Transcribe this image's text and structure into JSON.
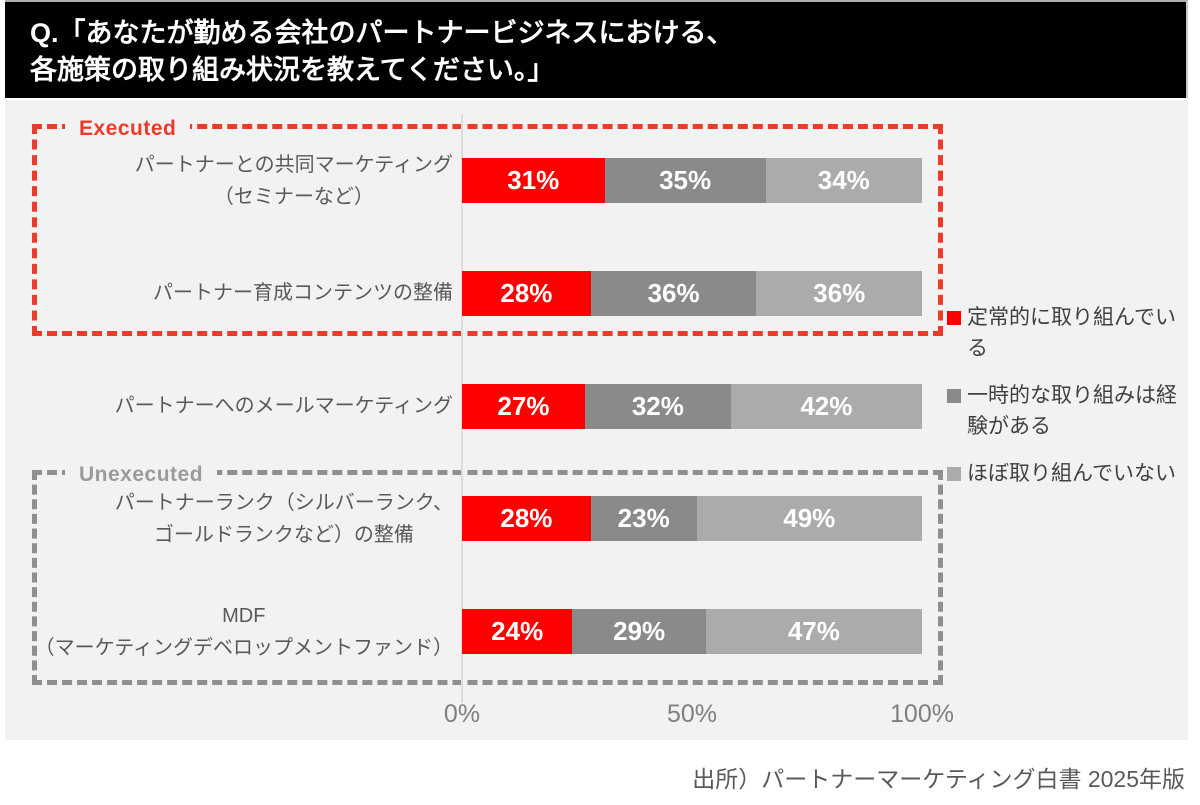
{
  "header": {
    "line1": "Q.「あなたが勤める会社のパートナービジネスにおける、",
    "line2": "各施策の取り組み状況を教えてください。」"
  },
  "chart_data": {
    "type": "bar",
    "orientation": "horizontal",
    "stacked": true,
    "unit": "%",
    "categories": [
      [
        "パートナーとの共同マーケティング",
        "（セミナーなど）"
      ],
      [
        "パートナー育成コンテンツの整備"
      ],
      [
        "パートナーへのメールマーケティング"
      ],
      [
        "パートナーランク（シルバーランク、",
        "ゴールドランクなど）の整備"
      ],
      [
        "MDF",
        "（マーケティングデベロップメントファンド）"
      ]
    ],
    "series": [
      {
        "name": "定常的に取り組んでいる",
        "color": "#fe0000",
        "values": [
          31,
          28,
          27,
          28,
          24
        ]
      },
      {
        "name": "一時的な取り組みは経験がある",
        "color": "#8a8a8a",
        "values": [
          35,
          36,
          32,
          23,
          29
        ]
      },
      {
        "name": "ほぼ取り組んでいない",
        "color": "#ababab",
        "values": [
          34,
          36,
          42,
          49,
          47
        ]
      }
    ],
    "x_ticks": [
      "0%",
      "50%",
      "100%"
    ],
    "xlim": [
      0,
      100
    ],
    "legend_position": "right",
    "grid": false,
    "groups": [
      {
        "label": "Executed",
        "rows": [
          0,
          1
        ],
        "color": "#ee3a2b"
      },
      {
        "label": "Unexecuted",
        "rows": [
          3,
          4
        ],
        "color": "#9b9b9b"
      }
    ]
  },
  "source": "出所）パートナーマーケティング白書 2025年版"
}
